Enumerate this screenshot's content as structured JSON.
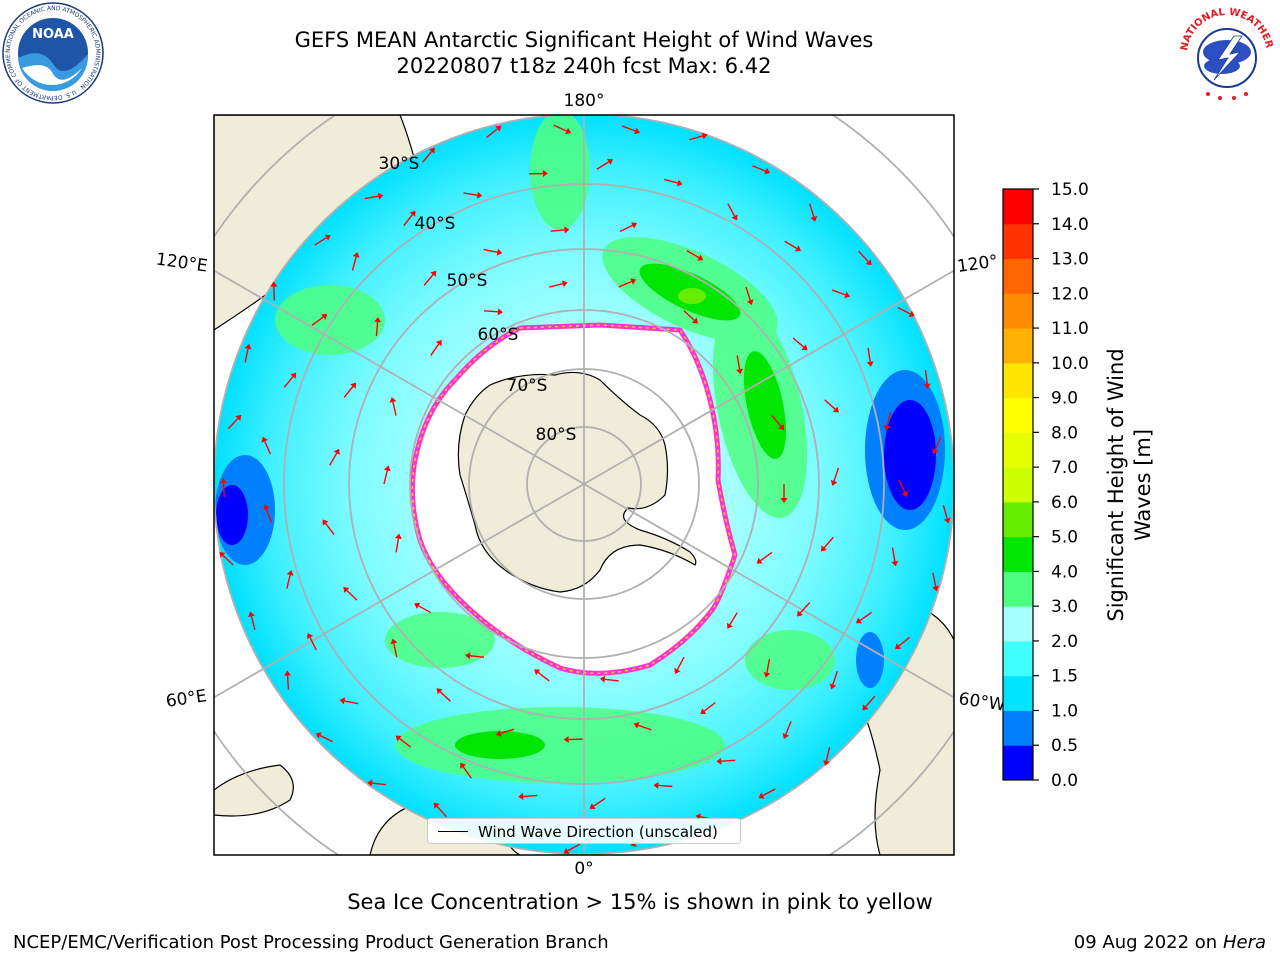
{
  "header": {
    "title_line1": "GEFS MEAN Antarctic Significant Height of Wind Waves",
    "title_line2": "20220807 t18z 240h fcst   Max: 6.42"
  },
  "logos": {
    "noaa_text": "NOAA",
    "noaa_ring": "NATIONAL OCEANIC AND ATMOSPHERIC ADMINISTRATION · U.S. DEPARTMENT OF COMMERCE",
    "nws_ring": "NATIONAL WEATHER SERVICE"
  },
  "map": {
    "projection": "south-polar-stereographic",
    "longitude_labels": {
      "top": "180°",
      "bottom": "0°",
      "left_upper": "120°E",
      "left_lower": "60°E",
      "right_upper": "120°",
      "right_lower": "60°W"
    },
    "latitude_labels": [
      "30°S",
      "40°S",
      "50°S",
      "60°S",
      "70°S",
      "80°S"
    ],
    "colors": {
      "land": "#efedd9",
      "ice_free_ocean": "#ffffff",
      "sea_ice_edge": "#ff33cc",
      "arrows": "#ff0000",
      "gridlines": "#b0b0b0"
    }
  },
  "colorbar": {
    "label_line1": "Significant Height of Wind",
    "label_line2": "Waves [m]",
    "ticks": [
      "0.0",
      "0.5",
      "1.0",
      "1.5",
      "2.0",
      "3.0",
      "4.0",
      "5.0",
      "6.0",
      "7.0",
      "8.0",
      "9.0",
      "10.0",
      "11.0",
      "12.0",
      "13.0",
      "14.0",
      "15.0"
    ],
    "colors": [
      "#0000ff",
      "#0080ff",
      "#00e5ff",
      "#40ffff",
      "#a6ffff",
      "#4dff80",
      "#00e600",
      "#66ee00",
      "#ccff00",
      "#e6ff00",
      "#ffff00",
      "#ffe600",
      "#ffb000",
      "#ff8c00",
      "#ff6600",
      "#ff3300",
      "#ff0000"
    ]
  },
  "legend": {
    "label": "Wind Wave Direction (unscaled)"
  },
  "footer": {
    "ice_note": "Sea Ice Concentration > 15% is shown in pink to yellow",
    "credit": "NCEP/EMC/Verification Post Processing Product Generation Branch",
    "date": "09 Aug 2022 on",
    "host": "Hera"
  }
}
